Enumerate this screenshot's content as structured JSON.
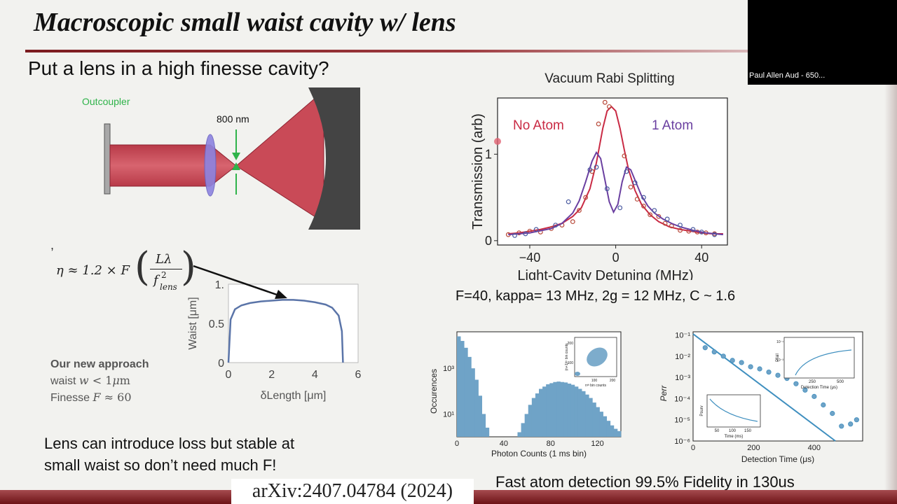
{
  "slide": {
    "title": "Macroscopic small waist cavity w/ lens",
    "subtitle": "Put a lens in a high finesse cavity?",
    "arxiv": "arXiv:2407.04784 (2024)",
    "lens_note_line1": "Lens can introduce loss but stable at",
    "lens_note_line2": "small waist so don’t need much F!",
    "params": "F=40, kappa= 13 MHz, 2g = 12 MHz,  C ~ 1.6",
    "fidelity": "Fast atom detection 99.5% Fidelity in 130us"
  },
  "video": {
    "participant": "Paul Allen Aud - 650..."
  },
  "cavity_diagram": {
    "outcoupler_label": "Outcoupler",
    "wavelength_label": "800 nm"
  },
  "approach": {
    "heading": "Our new approach",
    "waist_prefix": "waist ",
    "waist_var": "w",
    "waist_value": " < 1",
    "waist_unit_mu": "μ",
    "waist_unit": "m",
    "finesse_prefix": "Finesse ",
    "finesse_var": "F",
    "finesse_value": " ≈ 60"
  },
  "formula": {
    "lhs": "η ≈ 1.2 × F",
    "num": "Lλ",
    "den_f": "f",
    "den_sup": "2",
    "den_sub": "lens"
  },
  "colors": {
    "accent_red": "#c92a44",
    "accent_purple": "#6a3fa0",
    "beam": "#c94a57",
    "waist_curve": "#5a74a8",
    "hist_blue": "#6fa3c7",
    "title_rule": "#7b1b1f"
  },
  "chart_data": [
    {
      "type": "line",
      "title": "",
      "xlabel": "δLength [μm]",
      "ylabel": "Waist [μm]",
      "xlim": [
        0,
        6
      ],
      "ylim": [
        0,
        1
      ],
      "xticks": [
        "0",
        "2",
        "4",
        "6"
      ],
      "yticks": [
        "0",
        "0.5",
        "1."
      ],
      "series": [
        {
          "x": [
            0,
            0.1,
            0.3,
            0.6,
            1,
            1.5,
            2,
            2.5,
            3,
            3.5,
            4,
            4.5,
            4.8,
            5.1,
            5.25,
            5.3
          ],
          "y": [
            0,
            0.55,
            0.68,
            0.73,
            0.76,
            0.78,
            0.79,
            0.8,
            0.8,
            0.79,
            0.77,
            0.74,
            0.7,
            0.6,
            0.4,
            0
          ]
        }
      ]
    },
    {
      "type": "line",
      "title": "Vacuum Rabi Splitting",
      "xlabel": "Light-Cavity Detuning (MHz)",
      "ylabel": "Transmission (arb)",
      "xlim": [
        -55,
        52
      ],
      "ylim": [
        -0.05,
        1.65
      ],
      "xticks": [
        "−40",
        "0",
        "40"
      ],
      "yticks": [
        "0",
        "1"
      ],
      "annotations": [
        "No Atom",
        "1 Atom"
      ],
      "series": [
        {
          "name": "No Atom",
          "x": [
            -50,
            -45,
            -40,
            -35,
            -30,
            -25,
            -20,
            -16,
            -12,
            -9,
            -6,
            -4,
            -2,
            0,
            2,
            4,
            6,
            9,
            12,
            16,
            20,
            25,
            30,
            35,
            40,
            45,
            50
          ],
          "y": [
            0.08,
            0.09,
            0.11,
            0.13,
            0.16,
            0.2,
            0.28,
            0.38,
            0.6,
            0.9,
            1.3,
            1.5,
            1.55,
            1.5,
            1.3,
            1.05,
            0.82,
            0.58,
            0.42,
            0.3,
            0.22,
            0.16,
            0.13,
            0.11,
            0.09,
            0.08,
            0.08
          ],
          "points_x": [
            -50,
            -45,
            -40,
            -35,
            -30,
            -25,
            -20,
            -17,
            -14,
            -11,
            -8,
            -5,
            -3,
            4,
            7,
            10,
            13,
            16,
            20,
            23,
            26,
            30,
            34,
            38,
            42,
            46
          ],
          "points_y": [
            0.07,
            0.09,
            0.11,
            0.1,
            0.14,
            0.18,
            0.22,
            0.35,
            0.5,
            0.8,
            1.35,
            1.6,
            1.55,
            0.98,
            0.62,
            0.48,
            0.4,
            0.3,
            0.28,
            0.2,
            0.17,
            0.12,
            0.11,
            0.1,
            0.09,
            0.08
          ]
        },
        {
          "name": "1 Atom",
          "x": [
            -50,
            -40,
            -30,
            -25,
            -20,
            -17,
            -14,
            -11,
            -9,
            -7,
            -5,
            -3,
            -1,
            1,
            3,
            5,
            7,
            9,
            12,
            15,
            18,
            22,
            26,
            30,
            36,
            42,
            50
          ],
          "y": [
            0.07,
            0.09,
            0.14,
            0.2,
            0.32,
            0.46,
            0.68,
            0.92,
            1.02,
            0.95,
            0.7,
            0.45,
            0.33,
            0.42,
            0.68,
            0.85,
            0.82,
            0.7,
            0.52,
            0.4,
            0.32,
            0.25,
            0.2,
            0.16,
            0.12,
            0.09,
            0.07
          ],
          "points_x": [
            -47,
            -42,
            -37,
            -28,
            -22,
            -12,
            -9,
            -4,
            2,
            5,
            9,
            13,
            18,
            24,
            30,
            36,
            40,
            46
          ],
          "points_y": [
            0.06,
            0.08,
            0.13,
            0.18,
            0.45,
            0.82,
            0.85,
            0.6,
            0.38,
            0.8,
            0.67,
            0.5,
            0.35,
            0.25,
            0.18,
            0.13,
            0.1,
            0.07
          ]
        }
      ]
    },
    {
      "type": "bar",
      "title": "",
      "xlabel": "Photon Counts (1 ms bin)",
      "ylabel": "Occurences",
      "xlim": [
        0,
        140
      ],
      "xticks": [
        "0",
        "40",
        "80",
        "120"
      ],
      "yticks": [
        "10¹",
        "10³"
      ],
      "inset": {
        "xlabel": "nᵗʰ bin counts",
        "ylabel": "(n+1)ᵗʰ bin counts",
        "xticks": [
          "100",
          "200"
        ],
        "yticks": [
          "100",
          "200"
        ]
      },
      "values_log10": [
        4.4,
        4.2,
        3.9,
        3.5,
        3.0,
        2.5,
        1.8,
        1.0,
        0.4,
        0,
        0,
        0,
        0,
        0,
        0,
        0,
        0,
        0.2,
        0.6,
        1.0,
        1.4,
        1.7,
        1.9,
        2.1,
        2.2,
        2.3,
        2.35,
        2.4,
        2.42,
        2.4,
        2.38,
        2.33,
        2.28,
        2.2,
        2.1,
        2.0,
        1.85,
        1.7,
        1.5,
        1.3,
        1.1,
        0.9,
        0.7,
        0.5,
        0.35,
        0.25
      ]
    },
    {
      "type": "scatter",
      "title": "",
      "xlabel": "Detection Time (μs)",
      "ylabel": "Perr",
      "xlim": [
        0,
        560
      ],
      "xticks": [
        "0",
        "200",
        "400"
      ],
      "yticks": [
        "10⁻⁶",
        "10⁻⁵",
        "10⁻⁴",
        "10⁻³",
        "10⁻²",
        "10⁻¹"
      ],
      "series": [
        {
          "name": "fit",
          "x": [
            0,
            470
          ],
          "log10_y": [
            -0.95,
            -6.0
          ]
        },
        {
          "name": "data",
          "x": [
            40,
            70,
            100,
            130,
            160,
            190,
            220,
            250,
            280,
            310,
            340,
            370,
            400,
            430,
            460,
            490,
            520,
            540
          ],
          "log10_y": [
            -1.6,
            -1.8,
            -2.0,
            -2.2,
            -2.3,
            -2.5,
            -2.6,
            -2.75,
            -2.9,
            -3.05,
            -3.3,
            -3.6,
            -3.9,
            -4.3,
            -4.7,
            -5.3,
            -5.2,
            -5.0
          ]
        }
      ],
      "inset_top": {
        "xlabel": "Detection Time (μs)",
        "ylabel": "Pfail",
        "xticks": [
          "250",
          "500"
        ],
        "yticks": [
          "10⁻¹",
          "10⁻³"
        ]
      },
      "inset_bottom": {
        "xlabel": "Time (ms)",
        "ylabel": "Psurv",
        "xticks": [
          "50",
          "100",
          "150"
        ]
      }
    }
  ]
}
